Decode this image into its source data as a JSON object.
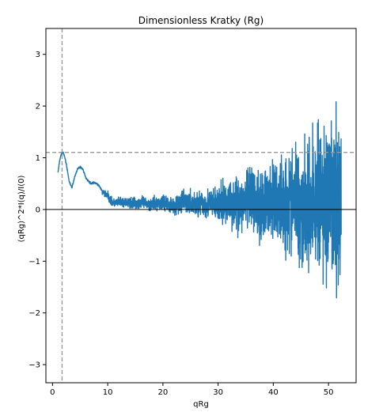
{
  "chart_data": {
    "type": "line",
    "title": "Dimensionless Kratky (Rg)",
    "xlabel": "qRg",
    "ylabel": "(qRg)^2*I(q)/I(0)",
    "xlim": [
      -1.2,
      55
    ],
    "ylim": [
      -3.35,
      3.5
    ],
    "xticks": [
      0,
      10,
      20,
      30,
      40,
      50
    ],
    "yticks": [
      -3,
      -2,
      -1,
      0,
      1,
      2,
      3
    ],
    "grid": false,
    "reference_lines": [
      {
        "orientation": "horizontal",
        "value": 1.104,
        "style": "dashed",
        "color": "#999999"
      },
      {
        "orientation": "vertical",
        "value": 1.732,
        "style": "dashed",
        "color": "#999999"
      },
      {
        "orientation": "horizontal",
        "value": 0,
        "style": "solid",
        "color": "#000000"
      }
    ],
    "series": [
      {
        "color": "#1f77b4",
        "x": [
          1.0,
          1.3,
          1.6,
          1.9,
          2.2,
          2.5,
          3.0,
          3.5,
          4.0,
          4.5,
          5.0,
          5.5,
          6.0,
          6.5,
          7.0,
          7.5,
          8.0,
          8.5,
          9.0,
          9.5,
          10.0,
          10.5,
          11.0,
          12.0,
          14.0,
          16.0,
          18.0,
          20.0,
          22.0,
          24.0,
          26.0,
          28.0,
          30.0,
          32.0,
          34.0,
          36.0,
          38.0,
          40.0,
          42.0,
          44.0,
          46.0,
          48.0,
          50.0,
          51.5,
          52.3
        ],
        "y": [
          0.72,
          0.95,
          1.08,
          1.1,
          1.02,
          0.88,
          0.55,
          0.42,
          0.62,
          0.78,
          0.82,
          0.78,
          0.62,
          0.55,
          0.5,
          0.52,
          0.5,
          0.45,
          0.35,
          0.3,
          0.28,
          0.18,
          0.12,
          0.14,
          0.12,
          0.13,
          0.1,
          0.14,
          0.08,
          0.15,
          0.1,
          0.12,
          0.08,
          0.14,
          0.1,
          0.18,
          0.1,
          0.15,
          0.12,
          0.2,
          0.1,
          0.18,
          0.1,
          0.12,
          0.1
        ],
        "noise_amplitude_envelope": [
          {
            "x": 10,
            "amp": 0.12
          },
          {
            "x": 20,
            "amp": 0.22
          },
          {
            "x": 30,
            "amp": 0.5
          },
          {
            "x": 40,
            "amp": 1.1
          },
          {
            "x": 45,
            "amp": 1.6
          },
          {
            "x": 50,
            "amp": 2.4
          },
          {
            "x": 52.3,
            "amp": 2.2
          }
        ]
      }
    ]
  }
}
